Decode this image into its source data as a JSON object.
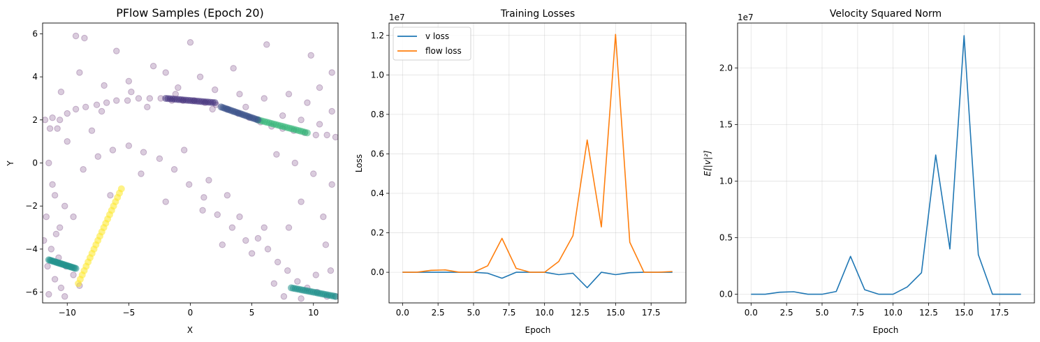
{
  "chart_data": [
    {
      "type": "scatter",
      "title": "PFlow Samples (Epoch 20)",
      "xlabel": "X",
      "ylabel": "Y",
      "xlim": [
        -12,
        12
      ],
      "ylim": [
        -6.5,
        6.5
      ],
      "xticks": [
        -10,
        -5,
        0,
        5,
        10
      ],
      "xtick_labels": [
        "−10",
        "−5",
        "0",
        "5",
        "10"
      ],
      "yticks": [
        -6,
        -4,
        -2,
        0,
        2,
        4,
        6
      ],
      "ytick_labels": [
        "−6",
        "−4",
        "−2",
        "0",
        "2",
        "4",
        "6"
      ],
      "colormap": "viridis",
      "grid": false,
      "points": [
        [
          -11.8,
          2.0
        ],
        [
          -11.2,
          2.1
        ],
        [
          -10.6,
          2.0
        ],
        [
          -10.0,
          2.3
        ],
        [
          -9.3,
          2.5
        ],
        [
          -8.5,
          2.6
        ],
        [
          -7.6,
          2.7
        ],
        [
          -6.8,
          2.8
        ],
        [
          -6.0,
          2.9
        ],
        [
          -5.1,
          2.9
        ],
        [
          -4.2,
          3.0
        ],
        [
          -3.3,
          3.0
        ],
        [
          -2.4,
          3.0
        ],
        [
          -1.5,
          2.9
        ],
        [
          -0.6,
          2.9
        ],
        [
          0.3,
          2.9
        ],
        [
          1.2,
          2.8
        ],
        [
          2.1,
          2.7
        ],
        [
          3.0,
          2.5
        ],
        [
          3.9,
          2.3
        ],
        [
          4.8,
          2.1
        ],
        [
          5.7,
          1.9
        ],
        [
          6.6,
          1.7
        ],
        [
          7.5,
          1.6
        ],
        [
          8.4,
          1.5
        ],
        [
          9.3,
          1.4
        ],
        [
          10.2,
          1.3
        ],
        [
          11.1,
          1.3
        ],
        [
          11.8,
          1.2
        ],
        [
          -11.9,
          -3.6
        ],
        [
          -11.3,
          -4.0
        ],
        [
          -10.7,
          -4.4
        ],
        [
          -10.1,
          -4.8
        ],
        [
          -9.5,
          -5.2
        ],
        [
          -9.0,
          -5.7
        ],
        [
          -10.5,
          -5.8
        ],
        [
          -11.5,
          -6.1
        ],
        [
          5.5,
          -3.5
        ],
        [
          6.3,
          -4.0
        ],
        [
          7.1,
          -4.6
        ],
        [
          7.9,
          -5.0
        ],
        [
          8.7,
          -5.5
        ],
        [
          9.5,
          -5.8
        ],
        [
          10.3,
          -6.0
        ],
        [
          11.1,
          -6.2
        ],
        [
          11.8,
          -6.2
        ],
        [
          -11.0,
          -1.5
        ],
        [
          -10.2,
          -2.0
        ],
        [
          -9.5,
          -2.5
        ],
        [
          -10.6,
          -3.0
        ],
        [
          -8.7,
          -0.3
        ],
        [
          -7.5,
          0.3
        ],
        [
          -6.3,
          0.6
        ],
        [
          -5.0,
          0.8
        ],
        [
          -3.8,
          0.5
        ],
        [
          -2.5,
          0.2
        ],
        [
          -1.3,
          -0.3
        ],
        [
          -0.1,
          -1.0
        ],
        [
          1.1,
          -1.6
        ],
        [
          2.2,
          -2.4
        ],
        [
          3.4,
          -3.0
        ],
        [
          4.5,
          -3.6
        ],
        [
          -11.5,
          0.0
        ],
        [
          -11.2,
          -1.0
        ],
        [
          -10.0,
          1.0
        ],
        [
          -8.0,
          1.5
        ],
        [
          -6.5,
          -1.5
        ],
        [
          -4.0,
          -0.5
        ],
        [
          -2.0,
          -1.8
        ],
        [
          -0.5,
          0.6
        ],
        [
          1.5,
          -0.8
        ],
        [
          3.0,
          -1.5
        ],
        [
          4.0,
          -2.5
        ],
        [
          5.0,
          -4.2
        ],
        [
          6.0,
          -3.0
        ],
        [
          2.6,
          -3.8
        ],
        [
          1.0,
          -2.2
        ],
        [
          -9.0,
          4.2
        ],
        [
          -7.0,
          3.6
        ],
        [
          -5.0,
          3.8
        ],
        [
          -3.0,
          4.5
        ],
        [
          -1.0,
          3.5
        ],
        [
          0.8,
          4.0
        ],
        [
          2.0,
          3.4
        ],
        [
          4.0,
          3.2
        ],
        [
          6.0,
          3.0
        ],
        [
          8.0,
          3.2
        ],
        [
          9.5,
          2.8
        ],
        [
          10.5,
          3.5
        ],
        [
          11.5,
          4.2
        ],
        [
          -10.5,
          3.3
        ],
        [
          -6.0,
          5.2
        ],
        [
          -2.0,
          4.2
        ],
        [
          0.0,
          5.6
        ],
        [
          3.5,
          4.4
        ],
        [
          6.2,
          5.5
        ],
        [
          9.8,
          5.0
        ],
        [
          -8.6,
          5.8
        ],
        [
          -9.3,
          5.9
        ],
        [
          7.0,
          0.4
        ],
        [
          8.5,
          0.0
        ],
        [
          10.0,
          -0.5
        ],
        [
          11.5,
          -1.0
        ],
        [
          9.0,
          -1.8
        ],
        [
          10.8,
          -2.5
        ],
        [
          8.0,
          -3.0
        ],
        [
          11.0,
          -3.8
        ],
        [
          7.5,
          2.2
        ],
        [
          9.0,
          2.0
        ],
        [
          10.5,
          1.8
        ],
        [
          11.5,
          2.4
        ],
        [
          -11.6,
          -4.8
        ],
        [
          -11.0,
          -5.4
        ],
        [
          -10.2,
          -6.2
        ],
        [
          6.8,
          -5.6
        ],
        [
          7.6,
          -6.2
        ],
        [
          9.0,
          -6.3
        ],
        [
          10.2,
          -5.2
        ],
        [
          11.4,
          -5.0
        ],
        [
          -10.8,
          1.6
        ],
        [
          -7.2,
          2.4
        ],
        [
          -3.5,
          2.6
        ],
        [
          1.8,
          2.5
        ],
        [
          4.5,
          2.6
        ],
        [
          -1.2,
          3.2
        ],
        [
          -4.8,
          3.3
        ],
        [
          -11.4,
          1.6
        ],
        [
          -11.7,
          -2.5
        ],
        [
          -10.9,
          -3.3
        ]
      ],
      "dense_bands": [
        {
          "from": [
            -9.1,
            -5.6
          ],
          "to": [
            -5.6,
            -1.2
          ],
          "color": "#fde725"
        },
        {
          "from": [
            -11.5,
            -4.5
          ],
          "to": [
            -9.3,
            -4.9
          ],
          "color": "#21918c"
        },
        {
          "from": [
            8.2,
            -5.8
          ],
          "to": [
            11.8,
            -6.2
          ],
          "color": "#21918c"
        },
        {
          "from": [
            5.5,
            2.0
          ],
          "to": [
            9.5,
            1.4
          ],
          "color": "#35b779"
        },
        {
          "from": [
            2.5,
            2.6
          ],
          "to": [
            5.5,
            2.0
          ],
          "color": "#3b528b"
        },
        {
          "from": [
            -2.0,
            3.0
          ],
          "to": [
            2.0,
            2.8
          ],
          "color": "#46337e"
        }
      ]
    },
    {
      "type": "line",
      "title": "Training Losses",
      "xlabel": "Epoch",
      "ylabel": "Loss",
      "offset_label": "1e7",
      "xlim": [
        -0.95,
        19.95
      ],
      "ylim": [
        -0.1552,
        1.2628
      ],
      "xticks": [
        0.0,
        2.5,
        5.0,
        7.5,
        10.0,
        12.5,
        15.0,
        17.5
      ],
      "xtick_labels": [
        "0.0",
        "2.5",
        "5.0",
        "7.5",
        "10.0",
        "12.5",
        "15.0",
        "17.5"
      ],
      "yticks": [
        0.0,
        0.2,
        0.4,
        0.6,
        0.8,
        1.0,
        1.2
      ],
      "ytick_labels": [
        "0.0",
        "0.2",
        "0.4",
        "0.6",
        "0.8",
        "1.0",
        "1.2"
      ],
      "grid": true,
      "legend_position": "upper-left",
      "x": [
        0,
        1,
        2,
        3,
        4,
        5,
        6,
        7,
        8,
        9,
        10,
        11,
        12,
        13,
        14,
        15,
        16,
        17,
        18,
        19
      ],
      "series": [
        {
          "name": "v loss",
          "color": "#1f77b4",
          "values": [
            0.0,
            0.0,
            0.0,
            0.0,
            0.0,
            0.0,
            -0.005,
            -0.03,
            0.0,
            0.0,
            0.0,
            -0.012,
            -0.005,
            -0.078,
            0.0,
            -0.012,
            -0.002,
            0.0,
            0.0,
            0.0
          ]
        },
        {
          "name": "flow loss",
          "color": "#ff7f0e",
          "values": [
            0.0,
            0.0,
            0.01,
            0.012,
            0.0,
            0.0,
            0.033,
            0.172,
            0.02,
            0.0,
            0.0,
            0.055,
            0.185,
            0.67,
            0.23,
            1.205,
            0.152,
            0.0,
            0.0,
            0.004
          ]
        }
      ]
    },
    {
      "type": "line",
      "title": "Velocity Squared Norm",
      "xlabel": "Epoch",
      "ylabel": "E[|v|²]",
      "offset_label": "1e7",
      "xlim": [
        -0.95,
        19.95
      ],
      "ylim": [
        -0.0764,
        2.3964
      ],
      "xticks": [
        0.0,
        2.5,
        5.0,
        7.5,
        10.0,
        12.5,
        15.0,
        17.5
      ],
      "xtick_labels": [
        "0.0",
        "2.5",
        "5.0",
        "7.5",
        "10.0",
        "12.5",
        "15.0",
        "17.5"
      ],
      "yticks": [
        0.0,
        0.5,
        1.0,
        1.5,
        2.0
      ],
      "ytick_labels": [
        "0.0",
        "0.5",
        "1.0",
        "1.5",
        "2.0"
      ],
      "grid": true,
      "x": [
        0,
        1,
        2,
        3,
        4,
        5,
        6,
        7,
        8,
        9,
        10,
        11,
        12,
        13,
        14,
        15,
        16,
        17,
        18,
        19
      ],
      "series": [
        {
          "color": "#1f77b4",
          "values": [
            0.0,
            0.0,
            0.018,
            0.022,
            0.0,
            0.0,
            0.025,
            0.335,
            0.04,
            0.0,
            0.0,
            0.065,
            0.19,
            1.23,
            0.4,
            2.285,
            0.35,
            0.0,
            0.0,
            0.0
          ]
        }
      ]
    }
  ]
}
